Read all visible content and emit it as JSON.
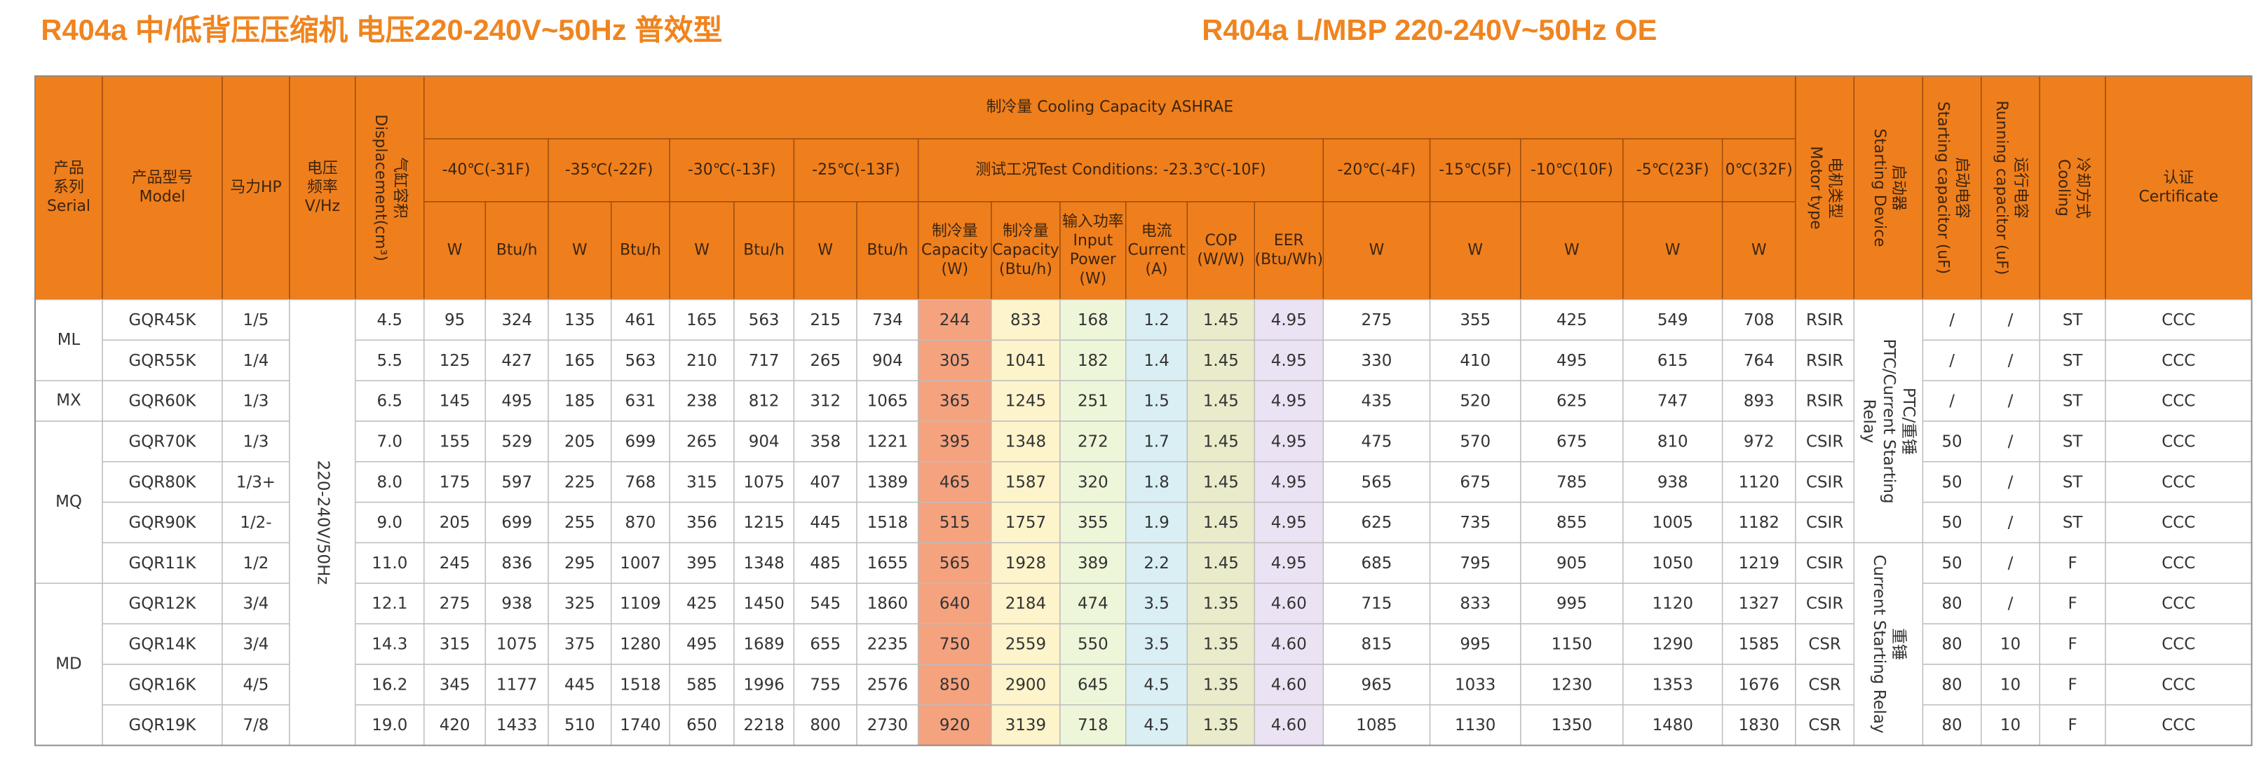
{
  "title_left": "R404a  中/低背压压缩机  电压220-240V~50Hz  普效型",
  "title_right": "R404a  L/MBP  220-240V~50Hz  OE",
  "table": {
    "header": [
      {
        "lines": [
          "产品",
          "系列",
          "Serial"
        ]
      },
      {
        "lines": [
          "产品型号",
          "Model"
        ]
      },
      {
        "lines": [
          "马力HP"
        ]
      },
      {
        "lines": [
          "电压",
          "频率",
          "V/Hz"
        ]
      },
      {
        "lines": [
          "气缸容积",
          "Displacement(cm³)"
        ]
      },
      {
        "lines": [
          "制冷量   Cooling   Capacity  ASHRAE"
        ]
      },
      {
        "lines": [
          "-40℃(-31F)"
        ]
      },
      {
        "lines": [
          "-35℃(-22F)"
        ]
      },
      {
        "lines": [
          "-30℃(-13F)"
        ]
      },
      {
        "lines": [
          "-25℃(-13F)"
        ]
      },
      {
        "lines": [
          "测试工况Test Conditions: -23.3℃(-10F)"
        ]
      },
      {
        "lines": [
          "-20℃(-4F)"
        ]
      },
      {
        "lines": [
          "-15℃(5F)"
        ]
      },
      {
        "lines": [
          "-10℃(10F)"
        ]
      },
      {
        "lines": [
          "-5℃(23F)"
        ]
      },
      {
        "lines": [
          "0℃(32F)"
        ]
      },
      {
        "lines": [
          "W"
        ]
      },
      {
        "lines": [
          "Btu/h"
        ]
      },
      {
        "lines": [
          "W"
        ]
      },
      {
        "lines": [
          "Btu/h"
        ]
      },
      {
        "lines": [
          "W"
        ]
      },
      {
        "lines": [
          "Btu/h"
        ]
      },
      {
        "lines": [
          "W"
        ]
      },
      {
        "lines": [
          "Btu/h"
        ]
      },
      {
        "lines": [
          "制冷量",
          "Capacity",
          "(W)"
        ]
      },
      {
        "lines": [
          "制冷量",
          "Capacity",
          "(Btu/h)"
        ]
      },
      {
        "lines": [
          "输入功率",
          "Input",
          "Power",
          "(W)"
        ]
      },
      {
        "lines": [
          "电流",
          "Current",
          "(A)"
        ]
      },
      {
        "lines": [
          "COP",
          "(W/W)"
        ]
      },
      {
        "lines": [
          "EER",
          "(Btu/Wh)"
        ]
      },
      {
        "lines": [
          "W"
        ]
      },
      {
        "lines": [
          "W"
        ]
      },
      {
        "lines": [
          "W"
        ]
      },
      {
        "lines": [
          "W"
        ]
      },
      {
        "lines": [
          "W"
        ]
      },
      {
        "lines": [
          "电机类型",
          "Motor type"
        ]
      },
      {
        "lines": [
          "启动器",
          "Starting Device"
        ]
      },
      {
        "lines": [
          "启动电容",
          "Starting capacitor (uF)"
        ]
      },
      {
        "lines": [
          "运行电容",
          "Running capacitor (uF)"
        ]
      },
      {
        "lines": [
          "冷却方式",
          "Cooling"
        ]
      },
      {
        "lines": [
          "认证",
          "Certificate"
        ]
      }
    ],
    "serials": [
      "ML",
      "MX",
      "MQ",
      "MD"
    ],
    "voltage": "220-240V/50Hz",
    "starting_device": [
      [
        "PTC/重锤",
        "PTC/Current Starting",
        "Relay"
      ],
      [
        "重锤",
        "Current Starting Relay"
      ]
    ],
    "rows": [
      {
        "cells": [
          "GQR45K",
          "1/5",
          "4.5",
          "95",
          "324",
          "135",
          "461",
          "165",
          "563",
          "215",
          "734",
          "244",
          "833",
          "168",
          "1.2",
          "1.45",
          "4.95",
          "275",
          "355",
          "425",
          "549",
          "708",
          "RSIR",
          "/",
          "/",
          "ST",
          "CCC"
        ]
      },
      {
        "cells": [
          "GQR55K",
          "1/4",
          "5.5",
          "125",
          "427",
          "165",
          "563",
          "210",
          "717",
          "265",
          "904",
          "305",
          "1041",
          "182",
          "1.4",
          "1.45",
          "4.95",
          "330",
          "410",
          "495",
          "615",
          "764",
          "RSIR",
          "/",
          "/",
          "ST",
          "CCC"
        ]
      },
      {
        "cells": [
          "GQR60K",
          "1/3",
          "6.5",
          "145",
          "495",
          "185",
          "631",
          "238",
          "812",
          "312",
          "1065",
          "365",
          "1245",
          "251",
          "1.5",
          "1.45",
          "4.95",
          "435",
          "520",
          "625",
          "747",
          "893",
          "RSIR",
          "/",
          "/",
          "ST",
          "CCC"
        ]
      },
      {
        "cells": [
          "GQR70K",
          "1/3",
          "7.0",
          "155",
          "529",
          "205",
          "699",
          "265",
          "904",
          "358",
          "1221",
          "395",
          "1348",
          "272",
          "1.7",
          "1.45",
          "4.95",
          "475",
          "570",
          "675",
          "810",
          "972",
          "CSIR",
          "50",
          "/",
          "ST",
          "CCC"
        ]
      },
      {
        "cells": [
          "GQR80K",
          "1/3+",
          "8.0",
          "175",
          "597",
          "225",
          "768",
          "315",
          "1075",
          "407",
          "1389",
          "465",
          "1587",
          "320",
          "1.8",
          "1.45",
          "4.95",
          "565",
          "675",
          "785",
          "938",
          "1120",
          "CSIR",
          "50",
          "/",
          "ST",
          "CCC"
        ]
      },
      {
        "cells": [
          "GQR90K",
          "1/2-",
          "9.0",
          "205",
          "699",
          "255",
          "870",
          "356",
          "1215",
          "445",
          "1518",
          "515",
          "1757",
          "355",
          "1.9",
          "1.45",
          "4.95",
          "625",
          "735",
          "855",
          "1005",
          "1182",
          "CSIR",
          "50",
          "/",
          "ST",
          "CCC"
        ]
      },
      {
        "cells": [
          "GQR11K",
          "1/2",
          "11.0",
          "245",
          "836",
          "295",
          "1007",
          "395",
          "1348",
          "485",
          "1655",
          "565",
          "1928",
          "389",
          "2.2",
          "1.45",
          "4.95",
          "685",
          "795",
          "905",
          "1050",
          "1219",
          "CSIR",
          "50",
          "/",
          "F",
          "CCC"
        ]
      },
      {
        "cells": [
          "GQR12K",
          "3/4",
          "12.1",
          "275",
          "938",
          "325",
          "1109",
          "425",
          "1450",
          "545",
          "1860",
          "640",
          "2184",
          "474",
          "3.5",
          "1.35",
          "4.60",
          "715",
          "833",
          "995",
          "1120",
          "1327",
          "CSIR",
          "80",
          "/",
          "F",
          "CCC"
        ]
      },
      {
        "cells": [
          "GQR14K",
          "3/4",
          "14.3",
          "315",
          "1075",
          "375",
          "1280",
          "495",
          "1689",
          "655",
          "2235",
          "750",
          "2559",
          "550",
          "3.5",
          "1.35",
          "4.60",
          "815",
          "995",
          "1150",
          "1290",
          "1585",
          "CSR",
          "80",
          "10",
          "F",
          "CCC"
        ]
      },
      {
        "cells": [
          "GQR16K",
          "4/5",
          "16.2",
          "345",
          "1177",
          "445",
          "1518",
          "585",
          "1996",
          "755",
          "2576",
          "850",
          "2900",
          "645",
          "4.5",
          "1.35",
          "4.60",
          "965",
          "1033",
          "1230",
          "1353",
          "1676",
          "CSR",
          "80",
          "10",
          "F",
          "CCC"
        ]
      },
      {
        "cells": [
          "GQR19K",
          "7/8",
          "19.0",
          "420",
          "1433",
          "510",
          "1740",
          "650",
          "2218",
          "800",
          "2730",
          "920",
          "3139",
          "718",
          "4.5",
          "1.35",
          "4.60",
          "1085",
          "1130",
          "1350",
          "1480",
          "1830",
          "CSR",
          "80",
          "10",
          "F",
          "CCC"
        ]
      }
    ]
  }
}
